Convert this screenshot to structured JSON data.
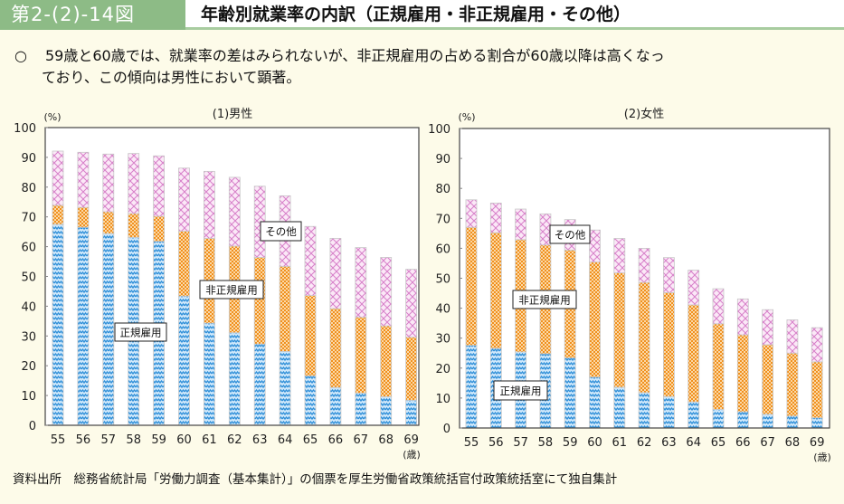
{
  "header": {
    "figure_number": "第2-(2)-14図",
    "title": "年齢別就業率の内訳（正規雇用・非正規雇用・その他）"
  },
  "summary": {
    "bullet": "○",
    "line1": "59歳と60歳では、就業率の差はみられないが、非正規雇用の占める割合が60歳以降は高くなっ",
    "line2": "ており、この傾向は男性において顕著。"
  },
  "footer": {
    "source": "資料出所　総務省統計局「労働力調査（基本集計）」の個票を厚生労働省政策統括官付政策統括室にて独自集計"
  },
  "colors": {
    "regular": "#2f8fd8",
    "non_regular": "#f0901e",
    "other": "#d77fc9",
    "header_green": "#8dbb86"
  },
  "chart_data": [
    {
      "type": "bar",
      "stacked": true,
      "title": "(1)男性",
      "ylabel": "(%)",
      "xlabel": "(歳)",
      "ylim": [
        0,
        100
      ],
      "yticks": [
        0,
        10,
        20,
        30,
        40,
        50,
        60,
        70,
        80,
        90,
        100
      ],
      "grid": false,
      "categories": [
        "55",
        "56",
        "57",
        "58",
        "59",
        "60",
        "61",
        "62",
        "63",
        "64",
        "65",
        "66",
        "67",
        "68",
        "69"
      ],
      "series": [
        {
          "name": "正規雇用",
          "values": [
            67.5,
            66.5,
            64.4,
            63.1,
            61.8,
            43.4,
            34.3,
            31.1,
            27.3,
            24.8,
            16.6,
            12.7,
            10.8,
            9.6,
            8.4
          ]
        },
        {
          "name": "非正規雇用",
          "values": [
            6.4,
            6.7,
            7.3,
            8.0,
            8.4,
            21.8,
            28.5,
            29.1,
            29.1,
            28.6,
            27.0,
            26.5,
            25.5,
            23.8,
            21.2
          ]
        },
        {
          "name": "その他",
          "values": [
            18.2,
            18.5,
            19.4,
            20.2,
            20.3,
            21.2,
            22.5,
            23.1,
            23.9,
            23.7,
            23.2,
            23.6,
            23.4,
            23.0,
            22.8
          ]
        }
      ],
      "totals": [
        92.1,
        91.7,
        91.1,
        91.3,
        90.5,
        86.4,
        85.3,
        83.3,
        80.3,
        77.1,
        66.8,
        62.8,
        59.7,
        56.4,
        52.4
      ],
      "annotations": [
        "その他",
        "非正規雇用",
        "正規雇用"
      ]
    },
    {
      "type": "bar",
      "stacked": true,
      "title": "(2)女性",
      "ylabel": "(%)",
      "xlabel": "(歳)",
      "ylim": [
        0,
        100
      ],
      "yticks": [
        0,
        10,
        20,
        30,
        40,
        50,
        60,
        70,
        80,
        90,
        100
      ],
      "grid": false,
      "categories": [
        "55",
        "56",
        "57",
        "58",
        "59",
        "60",
        "61",
        "62",
        "63",
        "64",
        "65",
        "66",
        "67",
        "68",
        "69"
      ],
      "series": [
        {
          "name": "正規雇用",
          "values": [
            27.6,
            26.6,
            25.4,
            24.8,
            23.4,
            17.0,
            13.6,
            11.8,
            10.5,
            8.7,
            6.2,
            5.4,
            4.6,
            4.0,
            3.4
          ]
        },
        {
          "name": "非正規雇用",
          "values": [
            39.4,
            38.6,
            37.5,
            36.3,
            36.0,
            38.4,
            38.2,
            36.8,
            34.7,
            32.4,
            28.6,
            25.7,
            23.2,
            21.0,
            18.7
          ]
        },
        {
          "name": "その他",
          "values": [
            9.2,
            9.9,
            10.2,
            10.4,
            10.2,
            10.7,
            11.5,
            11.4,
            11.7,
            11.6,
            11.7,
            12.0,
            11.7,
            11.1,
            11.4
          ]
        }
      ],
      "totals": [
        76.2,
        75.1,
        73.1,
        71.5,
        69.6,
        66.1,
        63.3,
        60.0,
        56.9,
        52.7,
        46.5,
        43.1,
        39.5,
        36.1,
        33.5
      ],
      "annotations": [
        "その他",
        "非正規雇用",
        "正規雇用"
      ]
    }
  ]
}
